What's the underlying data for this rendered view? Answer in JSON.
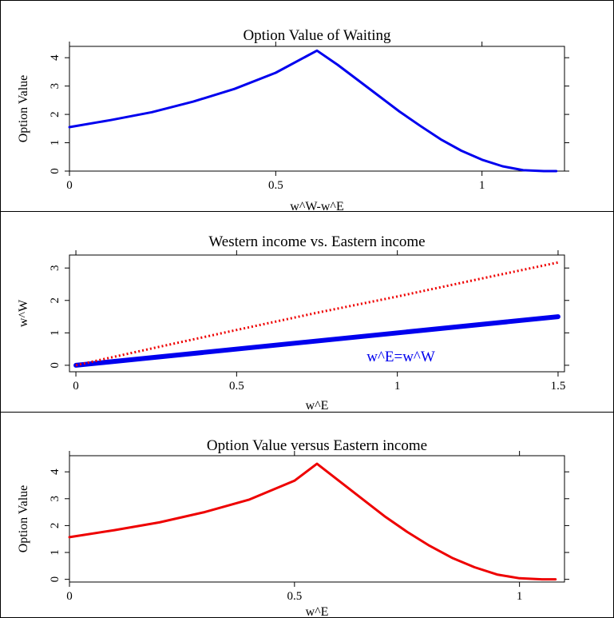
{
  "chart_data": [
    {
      "type": "line",
      "title": "Option Value of Waiting",
      "xlabel": "w^W-w^E",
      "ylabel": "Option Value",
      "xlim": [
        0,
        1.2
      ],
      "ylim": [
        0,
        4.4
      ],
      "xticks": [
        0,
        0.5,
        1
      ],
      "xtick_labels": [
        "0",
        "0.5",
        "1"
      ],
      "yticks": [
        0,
        1,
        2,
        3,
        4
      ],
      "ytick_labels": [
        "0",
        "1",
        "2",
        "3",
        "4"
      ],
      "grid": false,
      "series": [
        {
          "color": "#0000ee",
          "style": "solid",
          "x": [
            0,
            0.1,
            0.2,
            0.3,
            0.4,
            0.5,
            0.6,
            0.65,
            0.7,
            0.75,
            0.8,
            0.85,
            0.9,
            0.95,
            1.0,
            1.05,
            1.1,
            1.15,
            1.18
          ],
          "y": [
            1.55,
            1.8,
            2.08,
            2.45,
            2.9,
            3.47,
            4.25,
            3.75,
            3.2,
            2.65,
            2.1,
            1.6,
            1.12,
            0.72,
            0.4,
            0.17,
            0.03,
            0,
            0
          ]
        }
      ]
    },
    {
      "type": "line",
      "title": "Western income vs. Eastern income",
      "xlabel": "w^E",
      "ylabel": "w^W",
      "xlim": [
        -0.02,
        1.52
      ],
      "ylim": [
        -0.2,
        3.4
      ],
      "xticks": [
        0,
        0.5,
        1,
        1.5
      ],
      "xtick_labels": [
        "0",
        "0.5",
        "1",
        "1.5"
      ],
      "yticks": [
        0,
        1,
        2,
        3
      ],
      "ytick_labels": [
        "0",
        "1",
        "2",
        "3"
      ],
      "grid": false,
      "annotations": [
        {
          "text": "w^E=w^W",
          "color": "#0000ee"
        }
      ],
      "series": [
        {
          "color": "#0000ee",
          "style": "thick",
          "x": [
            0,
            1.5
          ],
          "y": [
            0,
            1.5
          ]
        },
        {
          "color": "#ee0000",
          "style": "dotted",
          "x": [
            0,
            0.25,
            0.5,
            0.75,
            1.0,
            1.25,
            1.5
          ],
          "y": [
            0,
            0.55,
            1.09,
            1.62,
            2.12,
            2.65,
            3.17
          ]
        }
      ]
    },
    {
      "type": "line",
      "title": "Option Value versus Eastern income",
      "xlabel": "w^E",
      "ylabel": "Option Value",
      "xlim": [
        0,
        1.1
      ],
      "ylim": [
        -0.1,
        4.6
      ],
      "xticks": [
        0,
        0.5,
        1
      ],
      "xtick_labels": [
        "0",
        "0.5",
        "1"
      ],
      "yticks": [
        0,
        1,
        2,
        3,
        4
      ],
      "ytick_labels": [
        "0",
        "1",
        "2",
        "3",
        "4"
      ],
      "grid": false,
      "series": [
        {
          "color": "#ee0000",
          "style": "solid",
          "x": [
            0,
            0.1,
            0.2,
            0.3,
            0.4,
            0.5,
            0.55,
            0.6,
            0.65,
            0.7,
            0.75,
            0.8,
            0.85,
            0.9,
            0.95,
            1.0,
            1.05,
            1.08
          ],
          "y": [
            1.57,
            1.83,
            2.12,
            2.5,
            2.97,
            3.67,
            4.3,
            3.65,
            3.0,
            2.35,
            1.77,
            1.25,
            0.8,
            0.45,
            0.18,
            0.04,
            0,
            0
          ]
        }
      ]
    }
  ]
}
